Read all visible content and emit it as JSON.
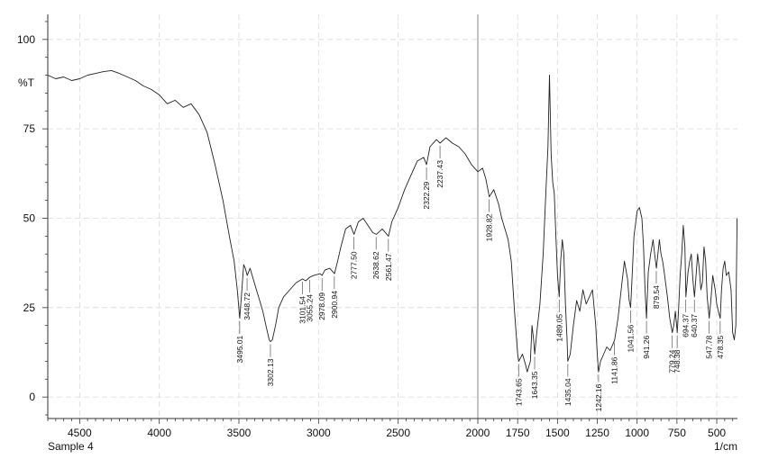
{
  "chart_data": {
    "type": "line",
    "title": "",
    "ylabel": "%T",
    "xlabel": "1/cm",
    "sample_label": "Sample 4",
    "xlim": [
      4700,
      370
    ],
    "ylim": [
      -6,
      107
    ],
    "x_ticks": [
      4500,
      4000,
      3500,
      3000,
      2500,
      2000,
      1750,
      1500,
      1250,
      1000,
      750,
      500
    ],
    "y_ticks": [
      0,
      25,
      50,
      75,
      100
    ],
    "grid": true,
    "line_color": "#222222",
    "marker_line_x": 2000,
    "series": [
      {
        "points": [
          [
            4700,
            90
          ],
          [
            4650,
            89
          ],
          [
            4600,
            89.5
          ],
          [
            4550,
            88.5
          ],
          [
            4500,
            89
          ],
          [
            4450,
            90
          ],
          [
            4400,
            90.5
          ],
          [
            4350,
            91
          ],
          [
            4300,
            91.3
          ],
          [
            4250,
            90.5
          ],
          [
            4200,
            89.5
          ],
          [
            4150,
            88.5
          ],
          [
            4100,
            87
          ],
          [
            4050,
            86
          ],
          [
            4000,
            84.5
          ],
          [
            3950,
            82
          ],
          [
            3900,
            83
          ],
          [
            3850,
            81
          ],
          [
            3800,
            82
          ],
          [
            3750,
            79
          ],
          [
            3700,
            74
          ],
          [
            3650,
            65
          ],
          [
            3600,
            55
          ],
          [
            3560,
            45
          ],
          [
            3530,
            38
          ],
          [
            3510,
            30
          ],
          [
            3495,
            22
          ],
          [
            3485,
            28
          ],
          [
            3470,
            37
          ],
          [
            3460,
            36
          ],
          [
            3448,
            34
          ],
          [
            3430,
            36
          ],
          [
            3410,
            33
          ],
          [
            3390,
            30
          ],
          [
            3370,
            27
          ],
          [
            3350,
            24
          ],
          [
            3330,
            20
          ],
          [
            3310,
            16
          ],
          [
            3302,
            15.5
          ],
          [
            3290,
            16
          ],
          [
            3270,
            20
          ],
          [
            3250,
            25
          ],
          [
            3220,
            28
          ],
          [
            3180,
            30
          ],
          [
            3140,
            32
          ],
          [
            3101,
            33
          ],
          [
            3080,
            32.5
          ],
          [
            3055,
            33.5
          ],
          [
            3030,
            34
          ],
          [
            2990,
            34.5
          ],
          [
            2978,
            34
          ],
          [
            2960,
            35.5
          ],
          [
            2930,
            36
          ],
          [
            2900,
            34.5
          ],
          [
            2880,
            38
          ],
          [
            2860,
            42
          ],
          [
            2830,
            47
          ],
          [
            2800,
            48
          ],
          [
            2777,
            45.5
          ],
          [
            2750,
            49
          ],
          [
            2720,
            50
          ],
          [
            2690,
            48
          ],
          [
            2660,
            46
          ],
          [
            2638,
            45.5
          ],
          [
            2600,
            47
          ],
          [
            2561,
            45
          ],
          [
            2540,
            49
          ],
          [
            2500,
            53
          ],
          [
            2460,
            58
          ],
          [
            2420,
            62
          ],
          [
            2380,
            66
          ],
          [
            2340,
            67
          ],
          [
            2322,
            65
          ],
          [
            2300,
            70
          ],
          [
            2260,
            72
          ],
          [
            2237,
            71
          ],
          [
            2200,
            72.5
          ],
          [
            2160,
            71
          ],
          [
            2120,
            70
          ],
          [
            2080,
            68
          ],
          [
            2040,
            65
          ],
          [
            2000,
            63
          ],
          [
            1970,
            64
          ],
          [
            1950,
            61
          ],
          [
            1928,
            56
          ],
          [
            1900,
            58
          ],
          [
            1870,
            54
          ],
          [
            1850,
            50
          ],
          [
            1830,
            47
          ],
          [
            1810,
            44
          ],
          [
            1790,
            38
          ],
          [
            1770,
            24
          ],
          [
            1750,
            12
          ],
          [
            1743,
            10
          ],
          [
            1720,
            12
          ],
          [
            1700,
            9
          ],
          [
            1690,
            7
          ],
          [
            1670,
            10
          ],
          [
            1660,
            20
          ],
          [
            1650,
            16
          ],
          [
            1643,
            12
          ],
          [
            1630,
            18
          ],
          [
            1610,
            26
          ],
          [
            1590,
            40
          ],
          [
            1575,
            55
          ],
          [
            1560,
            70
          ],
          [
            1550,
            90
          ],
          [
            1540,
            68
          ],
          [
            1530,
            60
          ],
          [
            1520,
            57
          ],
          [
            1510,
            45
          ],
          [
            1500,
            34
          ],
          [
            1489,
            28
          ],
          [
            1480,
            38
          ],
          [
            1470,
            44
          ],
          [
            1460,
            40
          ],
          [
            1450,
            26
          ],
          [
            1440,
            16
          ],
          [
            1435,
            10
          ],
          [
            1420,
            12
          ],
          [
            1400,
            20
          ],
          [
            1380,
            27
          ],
          [
            1360,
            24
          ],
          [
            1340,
            30
          ],
          [
            1320,
            26
          ],
          [
            1300,
            28
          ],
          [
            1280,
            30
          ],
          [
            1260,
            20
          ],
          [
            1250,
            12
          ],
          [
            1242,
            7
          ],
          [
            1230,
            10
          ],
          [
            1210,
            12
          ],
          [
            1190,
            14
          ],
          [
            1170,
            13
          ],
          [
            1150,
            15
          ],
          [
            1141,
            16
          ],
          [
            1120,
            22
          ],
          [
            1100,
            30
          ],
          [
            1080,
            38
          ],
          [
            1060,
            33
          ],
          [
            1050,
            27
          ],
          [
            1041,
            25
          ],
          [
            1030,
            35
          ],
          [
            1020,
            45
          ],
          [
            1000,
            52
          ],
          [
            985,
            53
          ],
          [
            970,
            50
          ],
          [
            960,
            42
          ],
          [
            950,
            30
          ],
          [
            941,
            22
          ],
          [
            930,
            35
          ],
          [
            915,
            40
          ],
          [
            900,
            44
          ],
          [
            890,
            40
          ],
          [
            879,
            36
          ],
          [
            860,
            44
          ],
          [
            850,
            40
          ],
          [
            840,
            38
          ],
          [
            830,
            35
          ],
          [
            810,
            28
          ],
          [
            795,
            22
          ],
          [
            779,
            18
          ],
          [
            770,
            20
          ],
          [
            760,
            24
          ],
          [
            748,
            18
          ],
          [
            740,
            24
          ],
          [
            730,
            34
          ],
          [
            720,
            40
          ],
          [
            710,
            48
          ],
          [
            700,
            42
          ],
          [
            694,
            28
          ],
          [
            680,
            35
          ],
          [
            670,
            38
          ],
          [
            660,
            40
          ],
          [
            650,
            33
          ],
          [
            640,
            28
          ],
          [
            630,
            34
          ],
          [
            620,
            40
          ],
          [
            610,
            36
          ],
          [
            600,
            30
          ],
          [
            590,
            32
          ],
          [
            580,
            42
          ],
          [
            570,
            38
          ],
          [
            560,
            28
          ],
          [
            547,
            22
          ],
          [
            535,
            28
          ],
          [
            525,
            34
          ],
          [
            510,
            30
          ],
          [
            500,
            26
          ],
          [
            490,
            24
          ],
          [
            478,
            22
          ],
          [
            470,
            30
          ],
          [
            460,
            36
          ],
          [
            450,
            38
          ],
          [
            440,
            34
          ],
          [
            425,
            35
          ],
          [
            410,
            30
          ],
          [
            400,
            18
          ],
          [
            390,
            16
          ],
          [
            380,
            20
          ],
          [
            372,
            50
          ]
        ]
      }
    ],
    "peaks": [
      {
        "x": 3495.01,
        "label": "3495.01",
        "y": 22
      },
      {
        "x": 3448.72,
        "label": "3448.72",
        "y": 34
      },
      {
        "x": 3302.13,
        "label": "3302.13",
        "y": 15.5
      },
      {
        "x": 3101.54,
        "label": "3101.54",
        "y": 33
      },
      {
        "x": 3055.24,
        "label": "3055.24",
        "y": 33.5
      },
      {
        "x": 2978.09,
        "label": "2978.09",
        "y": 34
      },
      {
        "x": 2900.94,
        "label": "2900.94",
        "y": 34.5
      },
      {
        "x": 2777.5,
        "label": "2777.50",
        "y": 45.5
      },
      {
        "x": 2638.62,
        "label": "2638.62",
        "y": 45.5
      },
      {
        "x": 2561.47,
        "label": "2561.47",
        "y": 45
      },
      {
        "x": 2322.29,
        "label": "2322.29",
        "y": 65
      },
      {
        "x": 2237.43,
        "label": "2237.43",
        "y": 71
      },
      {
        "x": 1928.82,
        "label": "1928.82",
        "y": 56
      },
      {
        "x": 1743.65,
        "label": "1743.65",
        "y": 10
      },
      {
        "x": 1643.35,
        "label": "1643.35",
        "y": 12
      },
      {
        "x": 1489.05,
        "label": "1489.05",
        "y": 28
      },
      {
        "x": 1435.04,
        "label": "1435.04",
        "y": 10
      },
      {
        "x": 1242.16,
        "label": "1242.16",
        "y": 7
      },
      {
        "x": 1141.86,
        "label": "1141.86",
        "y": 16
      },
      {
        "x": 1041.56,
        "label": "1041.56",
        "y": 25
      },
      {
        "x": 941.26,
        "label": "941.26",
        "y": 22
      },
      {
        "x": 879.54,
        "label": "879.54",
        "y": 36
      },
      {
        "x": 779.24,
        "label": "779.24",
        "y": 18
      },
      {
        "x": 748.38,
        "label": "748.38",
        "y": 18
      },
      {
        "x": 694.37,
        "label": "694.37",
        "y": 28
      },
      {
        "x": 640.37,
        "label": "640.37",
        "y": 28
      },
      {
        "x": 547.78,
        "label": "547.78",
        "y": 22
      },
      {
        "x": 478.35,
        "label": "478.35",
        "y": 22
      }
    ]
  }
}
